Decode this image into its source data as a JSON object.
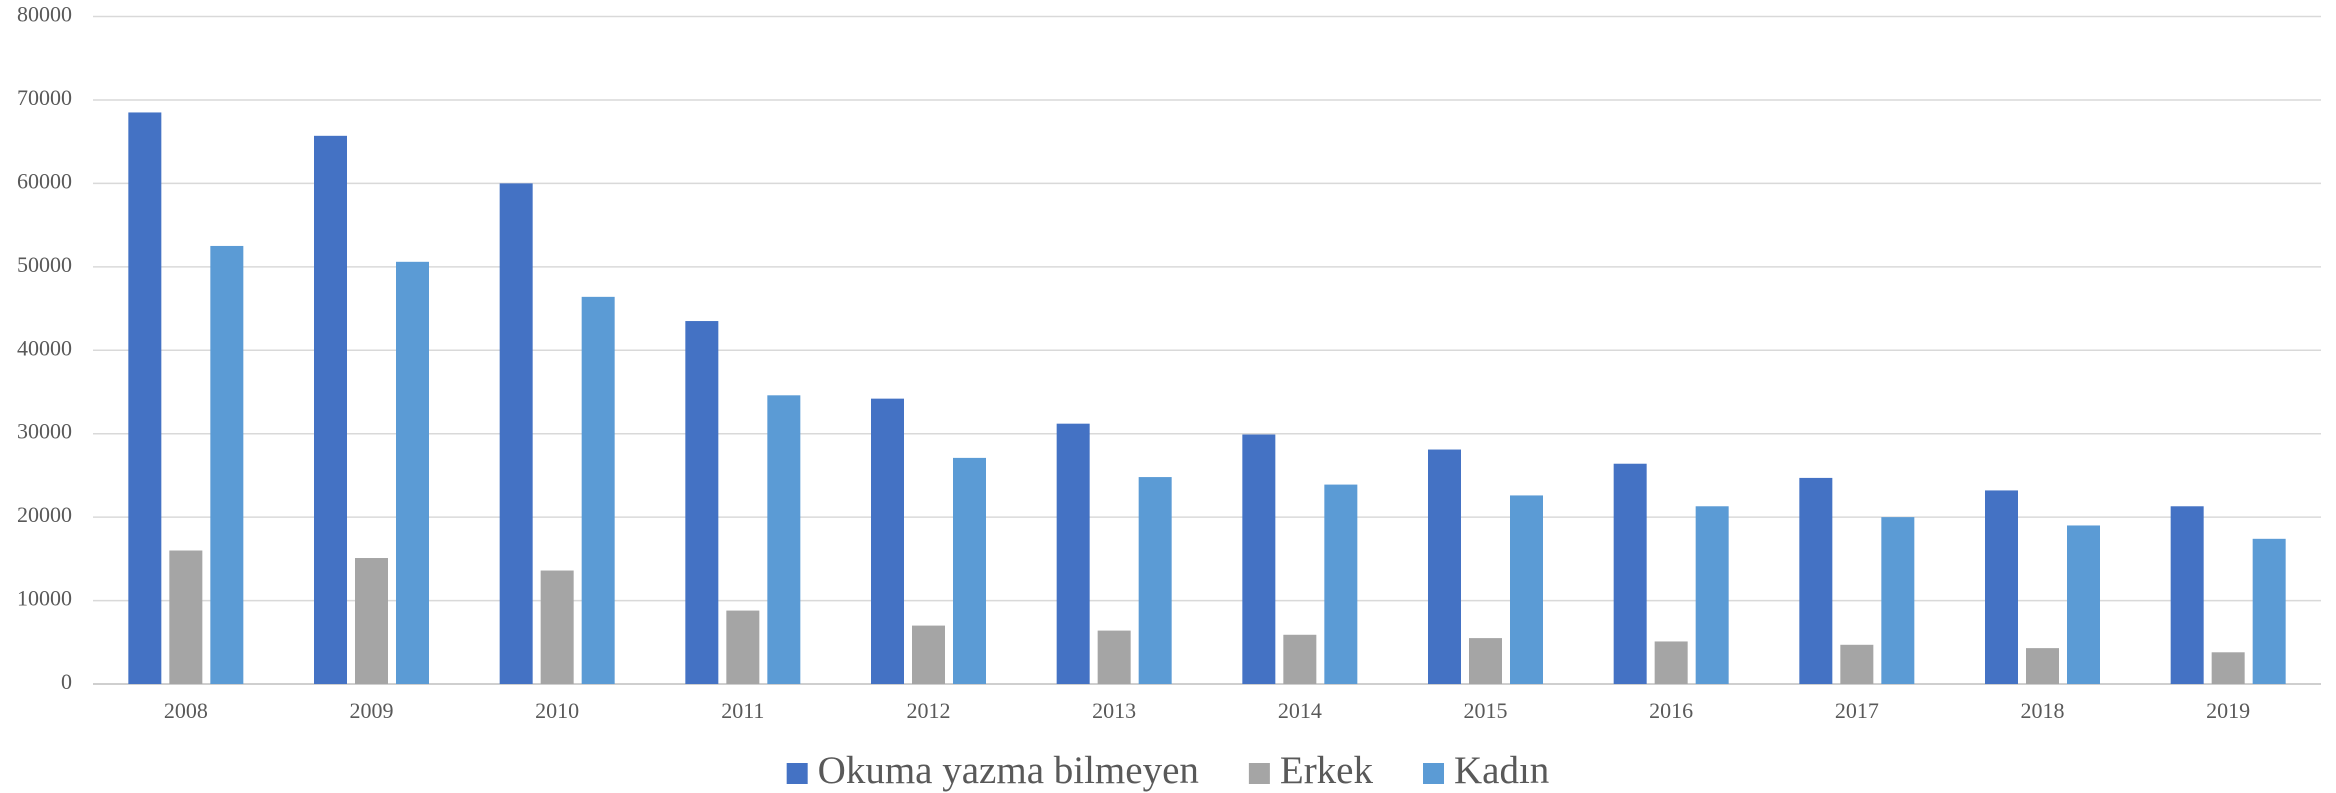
{
  "chart_data": {
    "type": "bar",
    "categories": [
      "2008",
      "2009",
      "2010",
      "2011",
      "2012",
      "2013",
      "2014",
      "2015",
      "2016",
      "2017",
      "2018",
      "2019"
    ],
    "series": [
      {
        "name": "Okuma yazma bilmeyen",
        "color": "#4472c4",
        "values": [
          68500,
          65700,
          60000,
          43500,
          34200,
          31200,
          29900,
          28100,
          26400,
          24700,
          23200,
          21300
        ]
      },
      {
        "name": "Erkek",
        "color": "#a5a5a5",
        "values": [
          16000,
          15100,
          13600,
          8800,
          7000,
          6400,
          5900,
          5500,
          5100,
          4700,
          4300,
          3800
        ]
      },
      {
        "name": "Kadın",
        "color": "#5b9bd5",
        "values": [
          52500,
          50600,
          46400,
          34600,
          27100,
          24800,
          23900,
          22600,
          21300,
          20000,
          19000,
          17400
        ]
      }
    ],
    "ylim": [
      0,
      80000
    ],
    "yticks": [
      0,
      10000,
      20000,
      30000,
      40000,
      50000,
      60000,
      70000,
      80000
    ],
    "grid": true,
    "legend": "bottom"
  }
}
